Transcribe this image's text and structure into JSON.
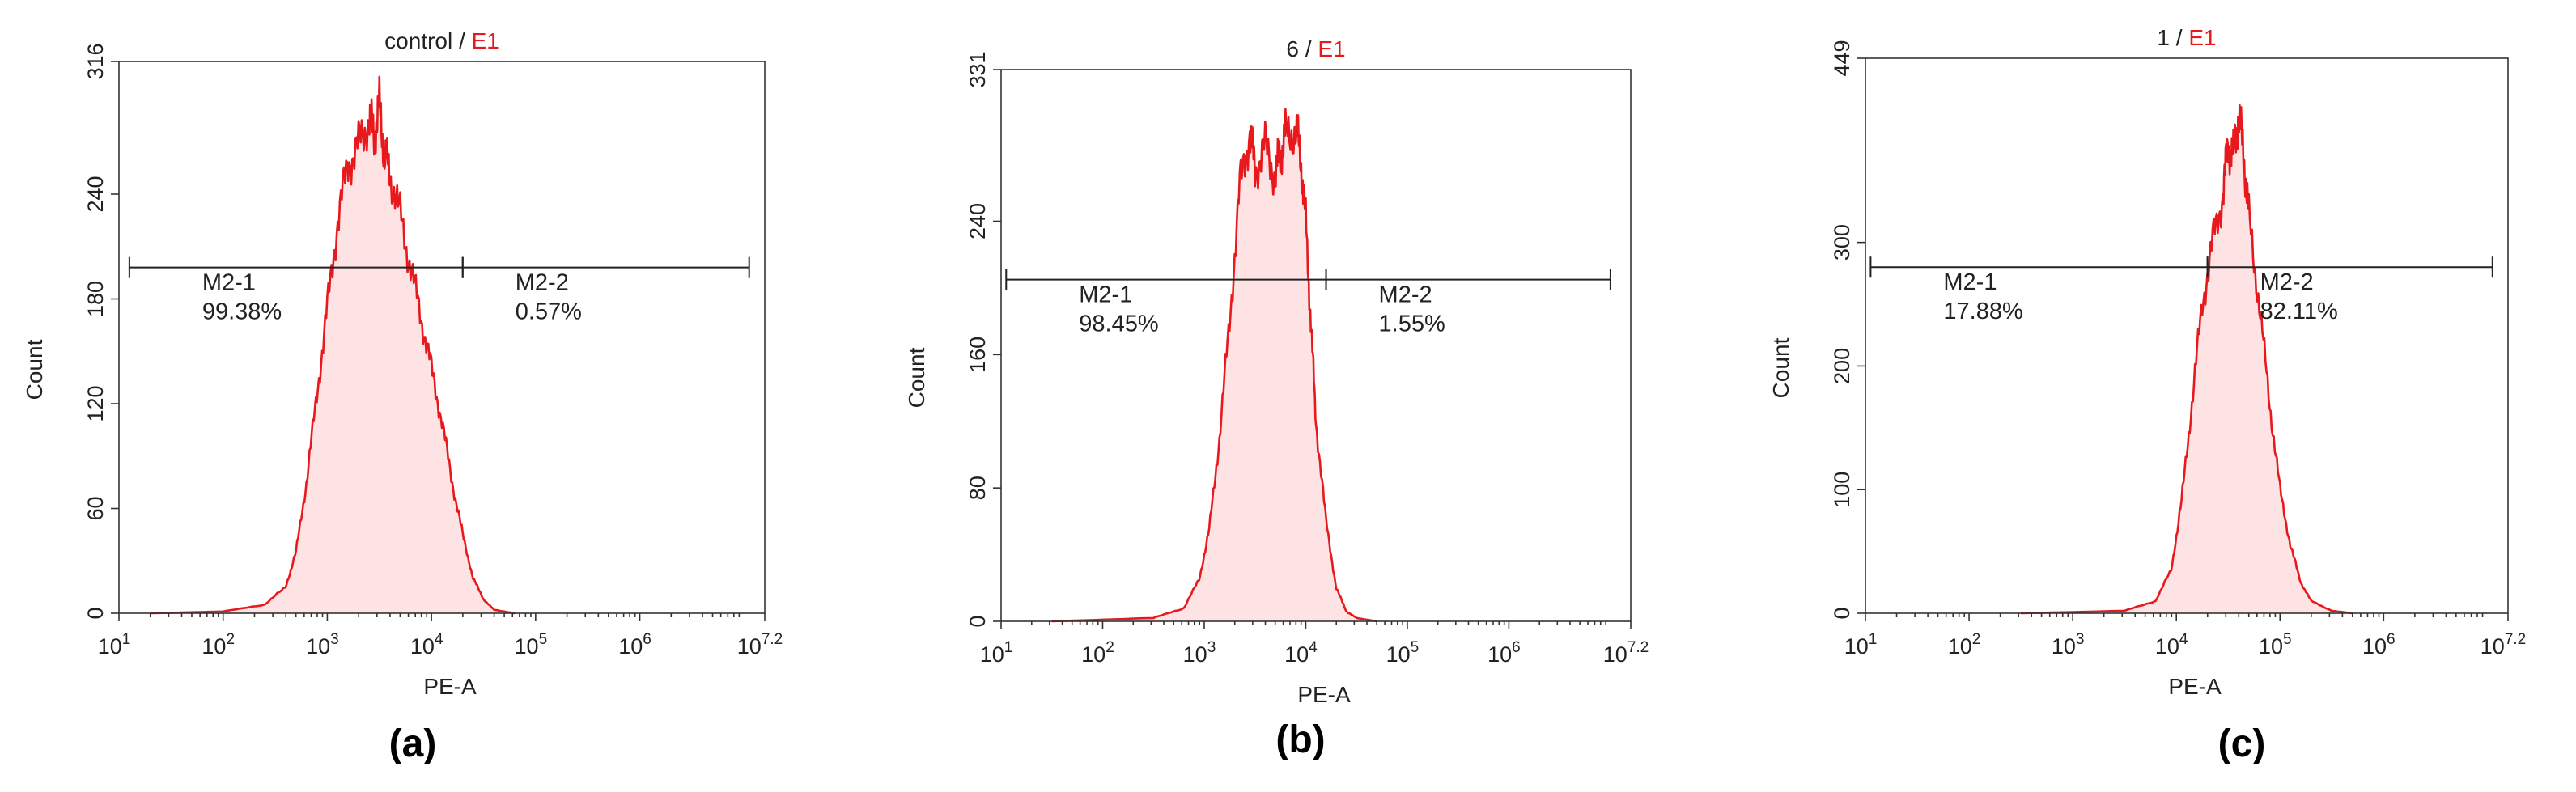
{
  "figure": {
    "panels": [
      {
        "panel_label": "(a)",
        "title_main": "control",
        "title_sep": " / ",
        "title_accent": "E1"
      },
      {
        "panel_label": "(b)",
        "title_main": "6",
        "title_sep": " / ",
        "title_accent": "E1"
      },
      {
        "panel_label": "(c)",
        "title_main": "1",
        "title_sep": " / ",
        "title_accent": "E1"
      }
    ]
  },
  "colors": {
    "histogram_line": "#e8191d",
    "histogram_fill": "#fde3e3",
    "title_accent": "#e8191d"
  },
  "chart_data": [
    {
      "type": "area",
      "title": "control / E1",
      "xlabel": "PE-A",
      "ylabel": "Count",
      "xscale": "log10",
      "xlim": [
        1,
        7.2
      ],
      "ylim": [
        0,
        316
      ],
      "x_ticks": [
        {
          "base": "10",
          "exp": "1"
        },
        {
          "base": "10",
          "exp": "2"
        },
        {
          "base": "10",
          "exp": "3"
        },
        {
          "base": "10",
          "exp": "4"
        },
        {
          "base": "10",
          "exp": "5"
        },
        {
          "base": "10",
          "exp": "6"
        },
        {
          "base": "10",
          "exp": "7.2"
        }
      ],
      "x_tick_values": [
        1,
        2,
        3,
        4,
        5,
        6,
        7.2
      ],
      "y_ticks": [
        0,
        60,
        120,
        180,
        240,
        316
      ],
      "y_tick_labels": [
        "0",
        "60",
        "120",
        "180",
        "240",
        "316"
      ],
      "histogram": {
        "log_x": [
          1.3,
          2.0,
          2.4,
          2.6,
          2.7,
          2.8,
          2.9,
          3.0,
          3.1,
          3.2,
          3.3,
          3.4,
          3.45,
          3.5,
          3.55,
          3.6,
          3.7,
          3.8,
          3.9,
          4.0,
          4.1,
          4.2,
          4.3,
          4.4,
          4.5,
          4.6,
          4.8
        ],
        "counts": [
          0,
          1,
          5,
          15,
          35,
          75,
          125,
          175,
          225,
          258,
          268,
          284,
          273,
          290,
          262,
          252,
          228,
          198,
          170,
          140,
          110,
          75,
          45,
          20,
          8,
          2,
          0
        ]
      },
      "gates": [
        {
          "name": "M2-1",
          "percent": "99.38%",
          "x_start": 1.1,
          "x_end": 4.3,
          "y_level": 198
        },
        {
          "name": "M2-2",
          "percent": "0.57%",
          "x_start": 4.3,
          "x_end": 7.05,
          "y_level": 198
        }
      ]
    },
    {
      "type": "area",
      "title": "6 / E1",
      "xlabel": "PE-A",
      "ylabel": "Count",
      "xscale": "log10",
      "xlim": [
        1,
        7.2
      ],
      "ylim": [
        0,
        331
      ],
      "x_ticks": [
        {
          "base": "10",
          "exp": "1"
        },
        {
          "base": "10",
          "exp": "2"
        },
        {
          "base": "10",
          "exp": "3"
        },
        {
          "base": "10",
          "exp": "4"
        },
        {
          "base": "10",
          "exp": "5"
        },
        {
          "base": "10",
          "exp": "6"
        },
        {
          "base": "10",
          "exp": "7.2"
        }
      ],
      "x_tick_values": [
        1,
        2,
        3,
        4,
        5,
        6,
        7.2
      ],
      "y_ticks": [
        0,
        80,
        160,
        240,
        331
      ],
      "y_tick_labels": [
        "0",
        "80",
        "160",
        "240",
        "331"
      ],
      "histogram": {
        "log_x": [
          1.5,
          2.5,
          2.8,
          2.95,
          3.05,
          3.15,
          3.25,
          3.35,
          3.45,
          3.5,
          3.6,
          3.7,
          3.75,
          3.8,
          3.9,
          3.95,
          4.0,
          4.05,
          4.1,
          4.2,
          4.3,
          4.4,
          4.5,
          4.7
        ],
        "counts": [
          0,
          2,
          8,
          25,
          55,
          110,
          180,
          260,
          295,
          272,
          285,
          268,
          280,
          290,
          295,
          278,
          240,
          180,
          120,
          60,
          20,
          6,
          2,
          0
        ]
      },
      "gates": [
        {
          "name": "M2-1",
          "percent": "98.45%",
          "x_start": 1.05,
          "x_end": 4.2,
          "y_level": 205
        },
        {
          "name": "M2-2",
          "percent": "1.55%",
          "x_start": 4.2,
          "x_end": 7.0,
          "y_level": 205
        }
      ]
    },
    {
      "type": "area",
      "title": "1 / E1",
      "xlabel": "PE-A",
      "ylabel": "Count",
      "xscale": "log10",
      "xlim": [
        1,
        7.2
      ],
      "ylim": [
        0,
        449
      ],
      "x_ticks": [
        {
          "base": "10",
          "exp": "1"
        },
        {
          "base": "10",
          "exp": "2"
        },
        {
          "base": "10",
          "exp": "3"
        },
        {
          "base": "10",
          "exp": "4"
        },
        {
          "base": "10",
          "exp": "5"
        },
        {
          "base": "10",
          "exp": "6"
        },
        {
          "base": "10",
          "exp": "7.2"
        }
      ],
      "x_tick_values": [
        1,
        2,
        3,
        4,
        5,
        6,
        7.2
      ],
      "y_ticks": [
        0,
        100,
        200,
        300,
        449
      ],
      "y_tick_labels": [
        "0",
        "100",
        "200",
        "300",
        "449"
      ],
      "histogram": {
        "log_x": [
          2.5,
          3.5,
          3.8,
          3.95,
          4.05,
          4.15,
          4.25,
          4.35,
          4.45,
          4.5,
          4.55,
          4.6,
          4.65,
          4.7,
          4.8,
          4.9,
          5.0,
          5.1,
          5.2,
          5.3,
          5.5,
          5.7
        ],
        "counts": [
          0,
          2,
          10,
          35,
          90,
          170,
          250,
          300,
          340,
          380,
          372,
          405,
          370,
          320,
          250,
          170,
          100,
          55,
          25,
          10,
          2,
          0
        ]
      },
      "gates": [
        {
          "name": "M2-1",
          "percent": "17.88%",
          "x_start": 1.05,
          "x_end": 4.3,
          "y_level": 280
        },
        {
          "name": "M2-2",
          "percent": "82.11%",
          "x_start": 4.3,
          "x_end": 7.05,
          "y_level": 280
        }
      ]
    }
  ]
}
